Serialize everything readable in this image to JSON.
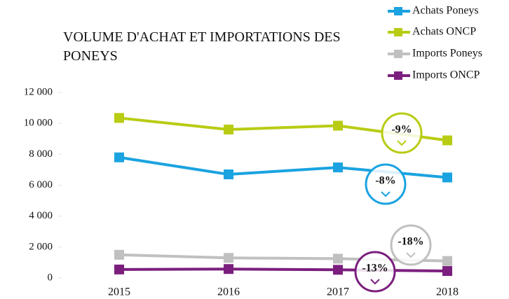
{
  "chart_data": {
    "type": "line",
    "title": "VOLUME D'ACHAT ET IMPORTATIONS DES PONEYS",
    "categories": [
      "2015",
      "2016",
      "2017",
      "2018"
    ],
    "series": [
      {
        "name": "Achats Poneys",
        "color": "#1aa3e0",
        "values": [
          7800,
          6700,
          7150,
          6500
        ],
        "annotation": "-8%"
      },
      {
        "name": "Achats ONCP",
        "color": "#b8cc14",
        "values": [
          10350,
          9600,
          9850,
          8900
        ],
        "annotation": "-9%"
      },
      {
        "name": "Imports Poneys",
        "color": "#c0c0c0",
        "values": [
          1500,
          1300,
          1250,
          1100
        ],
        "annotation": "-18%"
      },
      {
        "name": "Imports ONCP",
        "color": "#7b1f7e",
        "values": [
          550,
          580,
          530,
          450
        ],
        "annotation": "-13%"
      }
    ],
    "ylim": [
      0,
      12000
    ],
    "yticks": [
      0,
      {
        "value": 2000,
        "label": "2 000"
      },
      {
        "value": 4000,
        "label": "4 000"
      },
      {
        "value": 6000,
        "label": "6 000"
      },
      {
        "value": 8000,
        "label": "8 000"
      },
      {
        "value": 10000,
        "label": "10 000"
      },
      {
        "value": 12000,
        "label": "12 000"
      }
    ],
    "legend": "top-right",
    "grid": false
  }
}
